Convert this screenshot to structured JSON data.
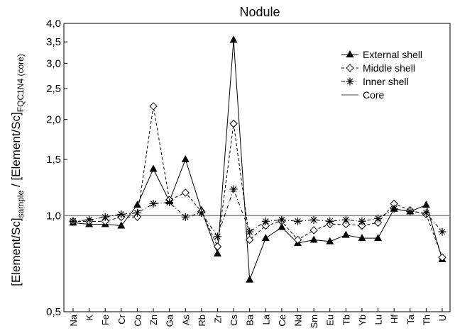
{
  "chart_data": {
    "type": "line",
    "title": "Nodule",
    "ylabel": {
      "parts": [
        {
          "text": "[Element/Sc]",
          "style": "normal"
        },
        {
          "text": "sample",
          "style": "sub"
        },
        {
          "text": " / [Element/Sc]",
          "style": "normal"
        },
        {
          "text": "FQC1N4 (core)",
          "style": "sub"
        }
      ]
    },
    "xlabel": "",
    "y_scale": "log",
    "ylim": [
      0.5,
      4.0
    ],
    "yticks": [
      0.5,
      1.0,
      1.5,
      2.0,
      2.5,
      3.0,
      3.5,
      4.0
    ],
    "ytick_labels": [
      "0,5",
      "1,0",
      "1,5",
      "2,0",
      "2,5",
      "3,0",
      "3,5",
      "4,0"
    ],
    "categories": [
      "Na",
      "K",
      "Fe",
      "Cr",
      "Co",
      "Zn",
      "Ga",
      "As",
      "Rb",
      "Zr",
      "Cs",
      "Ba",
      "La",
      "Ce",
      "Nd",
      "Sm",
      "Eu",
      "Tb",
      "Yb",
      "Lu",
      "Hf",
      "Ta",
      "Th",
      "U"
    ],
    "legend_position": "top-right",
    "series": [
      {
        "name": "External shell",
        "marker": "triangle",
        "line": "solid",
        "color": "#000000",
        "values": [
          0.95,
          0.94,
          0.94,
          0.93,
          1.08,
          1.4,
          1.11,
          1.5,
          1.04,
          0.76,
          3.55,
          0.63,
          0.85,
          0.92,
          0.82,
          0.84,
          0.83,
          0.87,
          0.85,
          0.85,
          1.05,
          1.03,
          1.08,
          0.73
        ]
      },
      {
        "name": "Middle shell",
        "marker": "diamond",
        "line": "dashed",
        "color": "#000000",
        "values": [
          0.96,
          0.96,
          0.96,
          0.99,
          0.99,
          2.2,
          1.12,
          1.18,
          1.03,
          0.8,
          1.94,
          0.84,
          0.93,
          0.96,
          0.84,
          0.9,
          0.94,
          0.94,
          0.93,
          0.95,
          1.09,
          1.04,
          1.01,
          0.74
        ]
      },
      {
        "name": "Inner shell",
        "marker": "asterisk",
        "line": "dash-dot",
        "color": "#000000",
        "values": [
          0.96,
          0.97,
          0.99,
          1.01,
          1.02,
          1.09,
          1.1,
          0.99,
          1.02,
          0.86,
          1.21,
          0.89,
          0.96,
          0.97,
          0.96,
          0.97,
          0.96,
          0.97,
          0.96,
          0.98,
          1.05,
          1.03,
          1.02,
          0.89
        ]
      },
      {
        "name": "Core",
        "marker": "none",
        "line": "solid",
        "color": "#888888",
        "values": [
          1.0,
          1.0,
          1.0,
          1.0,
          1.0,
          1.0,
          1.0,
          1.0,
          1.0,
          1.0,
          1.0,
          1.0,
          1.0,
          1.0,
          1.0,
          1.0,
          1.0,
          1.0,
          1.0,
          1.0,
          1.0,
          1.0,
          1.0,
          1.0
        ]
      }
    ]
  }
}
